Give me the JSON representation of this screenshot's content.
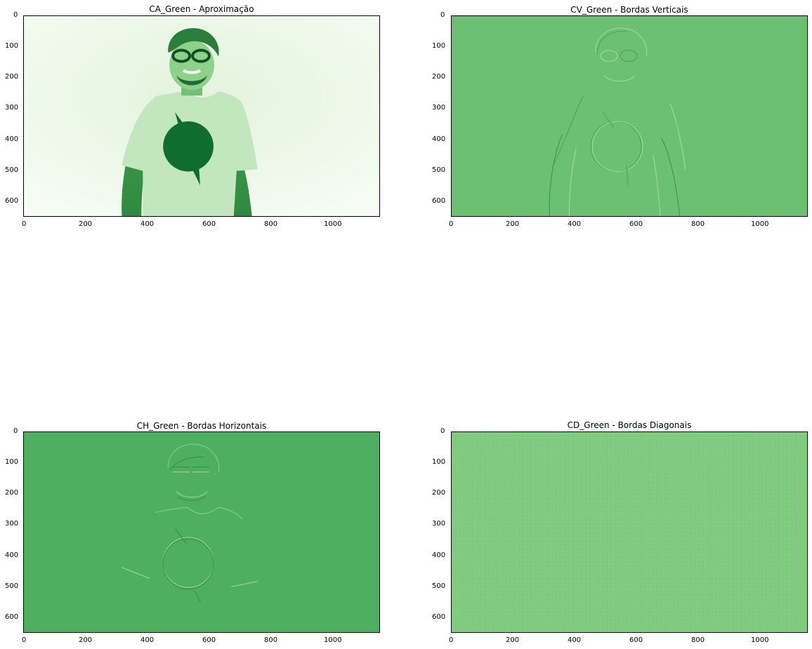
{
  "panels": [
    {
      "title": "CA_Green - Aproximação",
      "image": "green-tinted photo of a smiling man with glasses wearing a white t-shirt with a dark circular lightning logo",
      "background_color": "#eef8ea",
      "x_ticks": [
        "0",
        "200",
        "400",
        "600",
        "800",
        "1000"
      ],
      "y_ticks": [
        "0",
        "100",
        "200",
        "300",
        "400",
        "500",
        "600"
      ]
    },
    {
      "title": "CV_Green - Bordas Verticais",
      "image": "vertical edge detail coefficients, embossed outline of the man",
      "background_color": "#6cc072",
      "x_ticks": [
        "0",
        "200",
        "400",
        "600",
        "800",
        "1000"
      ],
      "y_ticks": [
        "0",
        "100",
        "200",
        "300",
        "400",
        "500",
        "600"
      ]
    },
    {
      "title": "CH_Green - Bordas Horizontais",
      "image": "horizontal edge detail coefficients, embossed outline of the man",
      "background_color": "#4faf61",
      "x_ticks": [
        "0",
        "200",
        "400",
        "600",
        "800",
        "1000"
      ],
      "y_ticks": [
        "0",
        "100",
        "200",
        "300",
        "400",
        "500",
        "600"
      ]
    },
    {
      "title": "CD_Green - Bordas Diagonais",
      "image": "diagonal edge detail coefficients, uniform noise",
      "background_color": "#80cb7f",
      "x_ticks": [
        "0",
        "200",
        "400",
        "600",
        "800",
        "1000"
      ],
      "y_ticks": [
        "0",
        "100",
        "200",
        "300",
        "400",
        "500",
        "600"
      ]
    }
  ],
  "axis": {
    "x_range": [
      0,
      1150
    ],
    "y_range": [
      0,
      648
    ]
  }
}
